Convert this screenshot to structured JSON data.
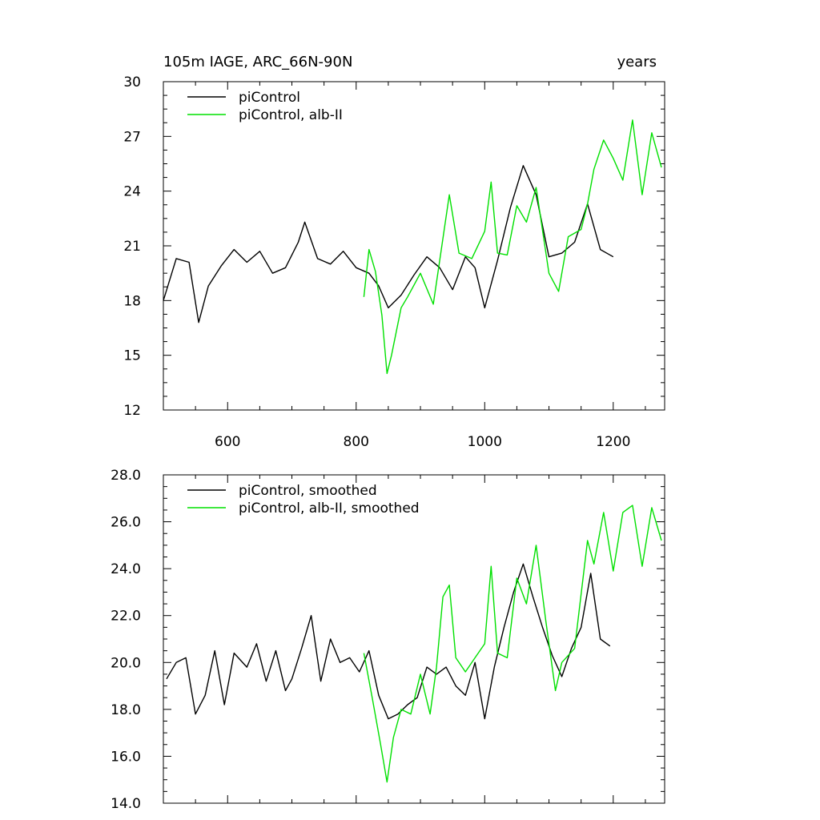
{
  "chart_data": [
    {
      "type": "line",
      "title_left": "105m IAGE, ARC_66N-90N",
      "title_right": "years",
      "xlim": [
        500,
        1280
      ],
      "ylim": [
        12,
        30
      ],
      "xticks": [
        600,
        800,
        1000,
        1200
      ],
      "xtick_labels": [
        "600",
        "800",
        "1000",
        "1200"
      ],
      "yticks": [
        12,
        15,
        18,
        21,
        24,
        27,
        30
      ],
      "ytick_labels": [
        "12",
        "15",
        "18",
        "21",
        "24",
        "27",
        "30"
      ],
      "show_xtick_labels": true,
      "series": [
        {
          "name": "piControl",
          "color": "#000000",
          "x": [
            500,
            520,
            540,
            555,
            570,
            590,
            610,
            630,
            650,
            670,
            690,
            710,
            720,
            740,
            760,
            780,
            800,
            820,
            835,
            850,
            870,
            890,
            910,
            930,
            950,
            970,
            985,
            1000,
            1020,
            1040,
            1060,
            1080,
            1100,
            1120,
            1140,
            1160,
            1180,
            1200
          ],
          "values": [
            18.0,
            20.3,
            20.1,
            16.8,
            18.8,
            19.9,
            20.8,
            20.1,
            20.7,
            19.5,
            19.8,
            21.2,
            22.3,
            20.3,
            20.0,
            20.7,
            19.8,
            19.5,
            18.8,
            17.6,
            18.3,
            19.4,
            20.4,
            19.8,
            18.6,
            20.4,
            19.8,
            17.6,
            20.2,
            23.1,
            25.4,
            23.8,
            20.4,
            20.6,
            21.2,
            23.3,
            20.8,
            20.4
          ]
        },
        {
          "name": "piControl, alb-II",
          "color": "#00e000",
          "x": [
            812,
            820,
            830,
            840,
            848,
            855,
            870,
            880,
            900,
            920,
            935,
            945,
            960,
            980,
            1000,
            1010,
            1020,
            1035,
            1050,
            1065,
            1080,
            1100,
            1115,
            1130,
            1150,
            1160,
            1170,
            1185,
            1200,
            1215,
            1230,
            1245,
            1260,
            1275
          ],
          "values": [
            18.2,
            20.8,
            19.6,
            17.2,
            14.0,
            15.0,
            17.6,
            18.2,
            19.5,
            17.8,
            21.4,
            23.8,
            20.6,
            20.3,
            21.8,
            24.5,
            20.6,
            20.5,
            23.2,
            22.3,
            24.2,
            19.5,
            18.5,
            21.5,
            21.9,
            23.3,
            25.2,
            26.8,
            25.8,
            24.6,
            27.9,
            23.8,
            27.2,
            25.3
          ]
        }
      ]
    },
    {
      "type": "line",
      "title_left": "",
      "title_right": "",
      "xlim": [
        500,
        1280
      ],
      "ylim": [
        14.0,
        28.0
      ],
      "xticks": [
        600,
        800,
        1000,
        1200
      ],
      "xtick_labels": [
        "600",
        "800",
        "1000",
        "1200"
      ],
      "yticks": [
        14.0,
        16.0,
        18.0,
        20.0,
        22.0,
        24.0,
        26.0,
        28.0
      ],
      "ytick_labels": [
        "14.0",
        "16.0",
        "18.0",
        "20.0",
        "22.0",
        "24.0",
        "26.0",
        "28.0"
      ],
      "show_xtick_labels": false,
      "series": [
        {
          "name": "piControl, smoothed",
          "color": "#000000",
          "x": [
            505,
            520,
            535,
            550,
            565,
            580,
            595,
            610,
            630,
            645,
            660,
            675,
            690,
            700,
            715,
            730,
            745,
            760,
            775,
            790,
            805,
            820,
            835,
            850,
            865,
            880,
            895,
            910,
            925,
            940,
            955,
            970,
            985,
            1000,
            1015,
            1030,
            1045,
            1060,
            1075,
            1090,
            1105,
            1120,
            1135,
            1150,
            1165,
            1180,
            1195
          ],
          "values": [
            19.3,
            20.0,
            20.2,
            17.8,
            18.6,
            20.5,
            18.2,
            20.4,
            19.8,
            20.8,
            19.2,
            20.5,
            18.8,
            19.3,
            20.6,
            22.0,
            19.2,
            21.0,
            20.0,
            20.2,
            19.6,
            20.5,
            18.6,
            17.6,
            17.8,
            18.2,
            18.5,
            19.8,
            19.5,
            19.8,
            19.0,
            18.6,
            20.0,
            17.6,
            19.8,
            21.5,
            23.0,
            24.2,
            22.8,
            21.5,
            20.3,
            19.4,
            20.6,
            21.5,
            23.8,
            21.0,
            20.7
          ]
        },
        {
          "name": "piControl, alb-II, smoothed",
          "color": "#00e000",
          "x": [
            812,
            825,
            838,
            848,
            858,
            870,
            885,
            900,
            915,
            925,
            935,
            945,
            955,
            970,
            985,
            1000,
            1010,
            1020,
            1035,
            1050,
            1065,
            1080,
            1095,
            1110,
            1120,
            1140,
            1160,
            1170,
            1185,
            1200,
            1215,
            1230,
            1245,
            1260,
            1275
          ],
          "values": [
            20.4,
            18.5,
            16.5,
            14.9,
            16.8,
            18.0,
            17.8,
            19.5,
            17.8,
            19.8,
            22.8,
            23.3,
            20.2,
            19.6,
            20.2,
            20.8,
            24.1,
            20.4,
            20.2,
            23.6,
            22.5,
            25.0,
            21.8,
            18.8,
            20.0,
            20.6,
            25.2,
            24.2,
            26.4,
            23.9,
            26.4,
            26.7,
            24.1,
            26.6,
            25.2
          ]
        }
      ]
    }
  ]
}
